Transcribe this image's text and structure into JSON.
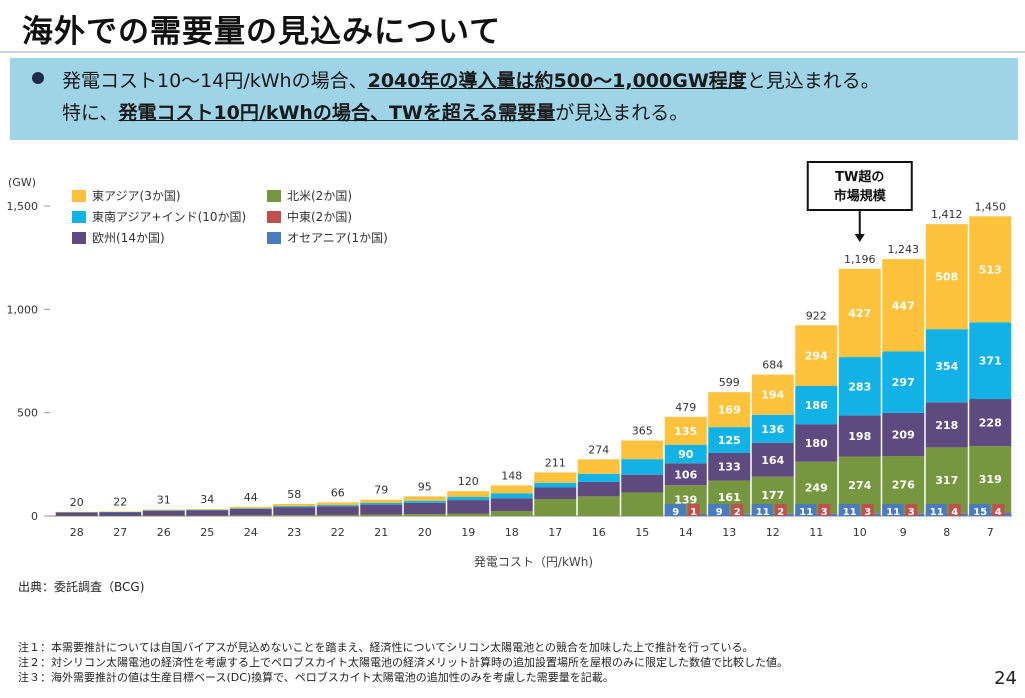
{
  "title": "海外での需要量の見込みについて",
  "summary": {
    "line1_pre": "発電コスト10〜14円/kWhの場合、",
    "line1_bold": "2040年の導入量は約500〜1,000GW程度",
    "line1_post": "と見込まれる。",
    "line2_pre": "特に、",
    "line2_bold": "発電コスト10円/kWhの場合、TWを超える需要量",
    "line2_post": "が見込まれる。"
  },
  "source": "出典：委託調査（BCG)",
  "notes": [
    "注１：本需要推計については自国バイアスが見込めないことを踏まえ、経済性についてシリコン太陽電池との競合を加味した上で推計を行っている。",
    "注２：対シリコン太陽電池の経済性を考慮する上でペロブスカイト太陽電池の経済メリット計算時の追加設置場所を屋根のみに限定した数値で比較した値。",
    "注３：海外需要推計の値は生産目標ベース(DC)換算で、ペロブスカイト太陽電池の追加性のみを考慮した需要量を記載。"
  ],
  "page_number": "24",
  "colors": {
    "east_asia": "#ffc23d",
    "se_asia_india": "#13b2e6",
    "europe": "#5e4a7e",
    "north_america": "#76973f",
    "middle_east": "#c0504d",
    "oceania": "#4b7bbf",
    "summary_bg": "#9fd3e6"
  },
  "chart_data": {
    "type": "bar",
    "stacked": true,
    "ylabel": "(GW)",
    "xlabel": "発電コスト（円/kWh)",
    "ylim": [
      0,
      1500
    ],
    "yticks": [
      "0",
      "500",
      "1,000",
      "1,500"
    ],
    "grid": false,
    "legend_position": "top-left",
    "categories": [
      "28",
      "27",
      "26",
      "25",
      "24",
      "23",
      "22",
      "21",
      "20",
      "19",
      "18",
      "17",
      "16",
      "15",
      "14",
      "13",
      "12",
      "11",
      "10",
      "9",
      "8",
      "7"
    ],
    "totals": [
      20,
      22,
      31,
      34,
      44,
      58,
      66,
      79,
      95,
      120,
      148,
      211,
      274,
      365,
      479,
      599,
      684,
      922,
      1196,
      1243,
      1412,
      1450
    ],
    "total_labels": [
      "20",
      "22",
      "31",
      "34",
      "44",
      "58",
      "66",
      "79",
      "95",
      "120",
      "148",
      "211",
      "274",
      "365",
      "479",
      "599",
      "684",
      "922",
      "1,196",
      "1,243",
      "1,412",
      "1,450"
    ],
    "series": [
      {
        "name": "オセアニア(1か国)",
        "color_key": "oceania",
        "values": [
          0,
          0,
          0,
          0,
          0,
          0,
          0,
          0,
          0,
          0,
          0,
          0,
          0,
          0,
          9,
          9,
          11,
          11,
          11,
          11,
          11,
          15
        ]
      },
      {
        "name": "中東(2か国)",
        "color_key": "middle_east",
        "values": [
          0,
          0,
          0,
          0,
          0,
          0,
          0,
          0,
          0,
          0,
          0,
          0,
          0,
          0,
          1,
          2,
          2,
          3,
          3,
          3,
          4,
          4
        ]
      },
      {
        "name": "北米(2か国)",
        "color_key": "north_america",
        "values": [
          1,
          1,
          2,
          2,
          3,
          4,
          5,
          7,
          9,
          12,
          24,
          82,
          95,
          114,
          139,
          161,
          177,
          249,
          274,
          276,
          317,
          319
        ]
      },
      {
        "name": "欧州(14か国)",
        "color_key": "europe",
        "values": [
          17,
          18,
          24,
          26,
          31,
          39,
          42,
          48,
          55,
          65,
          62,
          56,
          70,
          86,
          106,
          133,
          164,
          180,
          198,
          209,
          218,
          228
        ]
      },
      {
        "name": "東南アジア+インド(10か国)",
        "color_key": "se_asia_india",
        "values": [
          1,
          1,
          2,
          2,
          3,
          5,
          6,
          8,
          10,
          15,
          24,
          23,
          39,
          75,
          90,
          125,
          136,
          186,
          283,
          297,
          354,
          371
        ]
      },
      {
        "name": "東アジア(3か国)",
        "color_key": "east_asia",
        "values": [
          1,
          2,
          3,
          4,
          7,
          10,
          13,
          16,
          21,
          28,
          38,
          50,
          70,
          90,
          135,
          169,
          194,
          294,
          427,
          447,
          508,
          513
        ]
      }
    ],
    "labels": {
      "oceania": [
        "",
        "",
        "",
        "",
        "",
        "",
        "",
        "",
        "",
        "",
        "",
        "",
        "",
        "",
        "9",
        "9",
        "11",
        "11",
        "11",
        "11",
        "11",
        "15"
      ],
      "middle_east": [
        "",
        "",
        "",
        "",
        "",
        "",
        "",
        "",
        "",
        "",
        "",
        "",
        "",
        "",
        "1",
        "2",
        "2",
        "3",
        "3",
        "3",
        "4",
        "4"
      ],
      "north_america": [
        "",
        "",
        "",
        "",
        "",
        "",
        "",
        "",
        "",
        "",
        "",
        "",
        "",
        "",
        "139",
        "161",
        "177",
        "249",
        "274",
        "276",
        "317",
        "319"
      ],
      "europe": [
        "",
        "",
        "",
        "",
        "",
        "",
        "",
        "",
        "",
        "",
        "",
        "",
        "",
        "",
        "106",
        "133",
        "164",
        "180",
        "198",
        "209",
        "218",
        "228"
      ],
      "se_asia_india": [
        "",
        "",
        "",
        "",
        "",
        "",
        "",
        "",
        "",
        "",
        "",
        "",
        "",
        "",
        "90",
        "125",
        "136",
        "186",
        "283",
        "297",
        "354",
        "371"
      ],
      "east_asia": [
        "",
        "",
        "",
        "",
        "",
        "",
        "",
        "",
        "",
        "",
        "",
        "",
        "",
        "",
        "135",
        "169",
        "194",
        "294",
        "427",
        "447",
        "508",
        "513"
      ]
    },
    "legend": [
      {
        "label": "東アジア(3か国)",
        "color_key": "east_asia"
      },
      {
        "label": "北米(2か国)",
        "color_key": "north_america"
      },
      {
        "label": "東南アジア+インド(10か国)",
        "color_key": "se_asia_india"
      },
      {
        "label": "中東(2か国)",
        "color_key": "middle_east"
      },
      {
        "label": "欧州(14か国)",
        "color_key": "europe"
      },
      {
        "label": "オセアニア(1か国)",
        "color_key": "oceania"
      }
    ],
    "callout": {
      "line1": "TW超の",
      "line2": "市場規模",
      "category": "10"
    }
  }
}
